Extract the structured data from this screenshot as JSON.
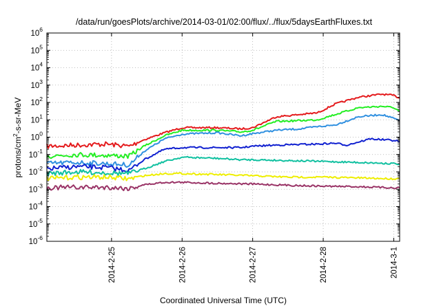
{
  "chart_data": {
    "type": "line",
    "title": "/data/run/goesPlots/archive/2014-03-01/02:00/flux/../flux/5daysEarthFluxes.txt",
    "xlabel": "Coordinated Universal Time (UTC)",
    "ylabel_parts": {
      "main": "protons/cm",
      "sup": "2",
      "rest": "-s-sr-MeV"
    },
    "yscale": "log",
    "ylim": [
      1e-06,
      1000000.0
    ],
    "y_tick_labels": [
      {
        "base": "10",
        "exp": "-6"
      },
      {
        "base": "10",
        "exp": "-5"
      },
      {
        "base": "10",
        "exp": "-4"
      },
      {
        "base": "10",
        "exp": "-3"
      },
      {
        "base": "10",
        "exp": "-2"
      },
      {
        "base": "10",
        "exp": "-1"
      },
      {
        "base": "10",
        "exp": "0"
      },
      {
        "base": "10",
        "exp": "1"
      },
      {
        "base": "10",
        "exp": "2"
      },
      {
        "base": "10",
        "exp": "3"
      },
      {
        "base": "10",
        "exp": "4"
      },
      {
        "base": "10",
        "exp": "5"
      },
      {
        "base": "10",
        "exp": "6"
      }
    ],
    "xlim": [
      "2014-02-24T02:00",
      "2014-03-01T02:00"
    ],
    "x_ticks": [
      {
        "label": "2014-2-25",
        "time": "2014-02-25T00:00"
      },
      {
        "label": "2014-2-26",
        "time": "2014-02-26T00:00"
      },
      {
        "label": "2014-2-27",
        "time": "2014-02-27T00:00"
      },
      {
        "label": "2014-2-28",
        "time": "2014-02-28T00:00"
      },
      {
        "label": "2014-3-1",
        "time": "2014-03-01T00:00"
      }
    ],
    "grid": true,
    "series": [
      {
        "color": "#e41a1c",
        "points": [
          [
            "2014-02-24T02:00",
            0.3
          ],
          [
            "2014-02-24T12:00",
            0.35
          ],
          [
            "2014-02-24T22:00",
            0.4
          ],
          [
            "2014-02-25T06:00",
            0.3
          ],
          [
            "2014-02-25T11:00",
            0.7
          ],
          [
            "2014-02-25T18:00",
            1.8
          ],
          [
            "2014-02-26T00:00",
            3.5
          ],
          [
            "2014-02-26T12:00",
            3.5
          ],
          [
            "2014-02-26T20:00",
            3.0
          ],
          [
            "2014-02-27T00:00",
            3.5
          ],
          [
            "2014-02-27T08:00",
            15
          ],
          [
            "2014-02-27T16:00",
            20
          ],
          [
            "2014-02-27T22:00",
            25
          ],
          [
            "2014-02-28T04:00",
            80
          ],
          [
            "2014-02-28T12:00",
            200
          ],
          [
            "2014-02-28T20:00",
            300
          ],
          [
            "2014-03-01T00:00",
            250
          ],
          [
            "2014-03-01T02:00",
            180
          ]
        ]
      },
      {
        "color": "#22ee22",
        "points": [
          [
            "2014-02-24T02:00",
            0.08
          ],
          [
            "2014-02-24T12:00",
            0.1
          ],
          [
            "2014-02-24T22:00",
            0.09
          ],
          [
            "2014-02-25T06:00",
            0.08
          ],
          [
            "2014-02-25T11:00",
            0.3
          ],
          [
            "2014-02-25T18:00",
            1.2
          ],
          [
            "2014-02-26T00:00",
            2.5
          ],
          [
            "2014-02-26T12:00",
            2.5
          ],
          [
            "2014-02-26T20:00",
            2.0
          ],
          [
            "2014-02-27T00:00",
            2.5
          ],
          [
            "2014-02-27T08:00",
            8
          ],
          [
            "2014-02-27T16:00",
            9
          ],
          [
            "2014-02-27T22:00",
            10
          ],
          [
            "2014-02-28T04:00",
            20
          ],
          [
            "2014-02-28T12:00",
            50
          ],
          [
            "2014-02-28T20:00",
            60
          ],
          [
            "2014-03-01T00:00",
            50
          ],
          [
            "2014-03-01T02:00",
            30
          ]
        ]
      },
      {
        "color": "#3090e0",
        "points": [
          [
            "2014-02-24T02:00",
            0.03
          ],
          [
            "2014-02-24T12:00",
            0.035
          ],
          [
            "2014-02-24T22:00",
            0.03
          ],
          [
            "2014-02-25T06:00",
            0.025
          ],
          [
            "2014-02-25T11:00",
            0.15
          ],
          [
            "2014-02-25T18:00",
            0.8
          ],
          [
            "2014-02-26T00:00",
            1.5
          ],
          [
            "2014-02-26T12:00",
            1.8
          ],
          [
            "2014-02-26T20:00",
            1.2
          ],
          [
            "2014-02-27T00:00",
            1.6
          ],
          [
            "2014-02-27T08:00",
            2.5
          ],
          [
            "2014-02-27T16:00",
            3.0
          ],
          [
            "2014-02-27T22:00",
            4
          ],
          [
            "2014-02-28T04:00",
            5
          ],
          [
            "2014-02-28T12:00",
            15
          ],
          [
            "2014-02-28T20:00",
            20
          ],
          [
            "2014-03-01T00:00",
            12
          ],
          [
            "2014-03-01T02:00",
            9
          ]
        ]
      },
      {
        "color": "#1020d0",
        "points": [
          [
            "2014-02-24T02:00",
            0.015
          ],
          [
            "2014-02-24T12:00",
            0.02
          ],
          [
            "2014-02-24T22:00",
            0.018
          ],
          [
            "2014-02-25T06:00",
            0.012
          ],
          [
            "2014-02-25T11:00",
            0.05
          ],
          [
            "2014-02-25T18:00",
            0.2
          ],
          [
            "2014-02-26T00:00",
            0.25
          ],
          [
            "2014-02-26T12:00",
            0.25
          ],
          [
            "2014-02-26T20:00",
            0.25
          ],
          [
            "2014-02-27T00:00",
            0.3
          ],
          [
            "2014-02-27T08:00",
            0.35
          ],
          [
            "2014-02-27T16:00",
            0.38
          ],
          [
            "2014-02-27T22:00",
            0.4
          ],
          [
            "2014-02-28T04:00",
            0.45
          ],
          [
            "2014-02-28T08:00",
            0.35
          ],
          [
            "2014-02-28T16:00",
            0.8
          ],
          [
            "2014-03-01T00:00",
            0.65
          ],
          [
            "2014-03-01T02:00",
            0.55
          ]
        ]
      },
      {
        "color": "#10c0a0",
        "points": [
          [
            "2014-02-24T02:00",
            0.008
          ],
          [
            "2014-02-24T12:00",
            0.01
          ],
          [
            "2014-02-24T22:00",
            0.009
          ],
          [
            "2014-02-25T06:00",
            0.008
          ],
          [
            "2014-02-25T11:00",
            0.015
          ],
          [
            "2014-02-25T18:00",
            0.04
          ],
          [
            "2014-02-26T00:00",
            0.07
          ],
          [
            "2014-02-26T12:00",
            0.06
          ],
          [
            "2014-02-26T20:00",
            0.05
          ],
          [
            "2014-02-27T00:00",
            0.05
          ],
          [
            "2014-02-27T12:00",
            0.045
          ],
          [
            "2014-02-28T00:00",
            0.04
          ],
          [
            "2014-02-28T12:00",
            0.035
          ],
          [
            "2014-03-01T00:00",
            0.03
          ],
          [
            "2014-03-01T02:00",
            0.028
          ]
        ]
      },
      {
        "color": "#eeee00",
        "points": [
          [
            "2014-02-24T02:00",
            0.004
          ],
          [
            "2014-02-24T12:00",
            0.005
          ],
          [
            "2014-02-24T22:00",
            0.005
          ],
          [
            "2014-02-25T06:00",
            0.004
          ],
          [
            "2014-02-25T11:00",
            0.006
          ],
          [
            "2014-02-25T18:00",
            0.008
          ],
          [
            "2014-02-26T00:00",
            0.008
          ],
          [
            "2014-02-26T12:00",
            0.007
          ],
          [
            "2014-02-27T00:00",
            0.006
          ],
          [
            "2014-02-27T12:00",
            0.005
          ],
          [
            "2014-02-28T00:00",
            0.005
          ],
          [
            "2014-02-28T12:00",
            0.0045
          ],
          [
            "2014-03-01T00:00",
            0.004
          ],
          [
            "2014-03-01T02:00",
            0.004
          ]
        ]
      },
      {
        "color": "#993366",
        "points": [
          [
            "2014-02-24T02:00",
            0.0012
          ],
          [
            "2014-02-24T12:00",
            0.0013
          ],
          [
            "2014-02-24T22:00",
            0.0013
          ],
          [
            "2014-02-25T06:00",
            0.0011
          ],
          [
            "2014-02-25T11:00",
            0.0018
          ],
          [
            "2014-02-25T18:00",
            0.0025
          ],
          [
            "2014-02-26T00:00",
            0.0025
          ],
          [
            "2014-02-26T12:00",
            0.0022
          ],
          [
            "2014-02-27T00:00",
            0.002
          ],
          [
            "2014-02-27T12:00",
            0.0017
          ],
          [
            "2014-02-28T00:00",
            0.0015
          ],
          [
            "2014-02-28T12:00",
            0.0014
          ],
          [
            "2014-03-01T00:00",
            0.0012
          ],
          [
            "2014-03-01T02:00",
            0.0012
          ]
        ]
      }
    ]
  }
}
